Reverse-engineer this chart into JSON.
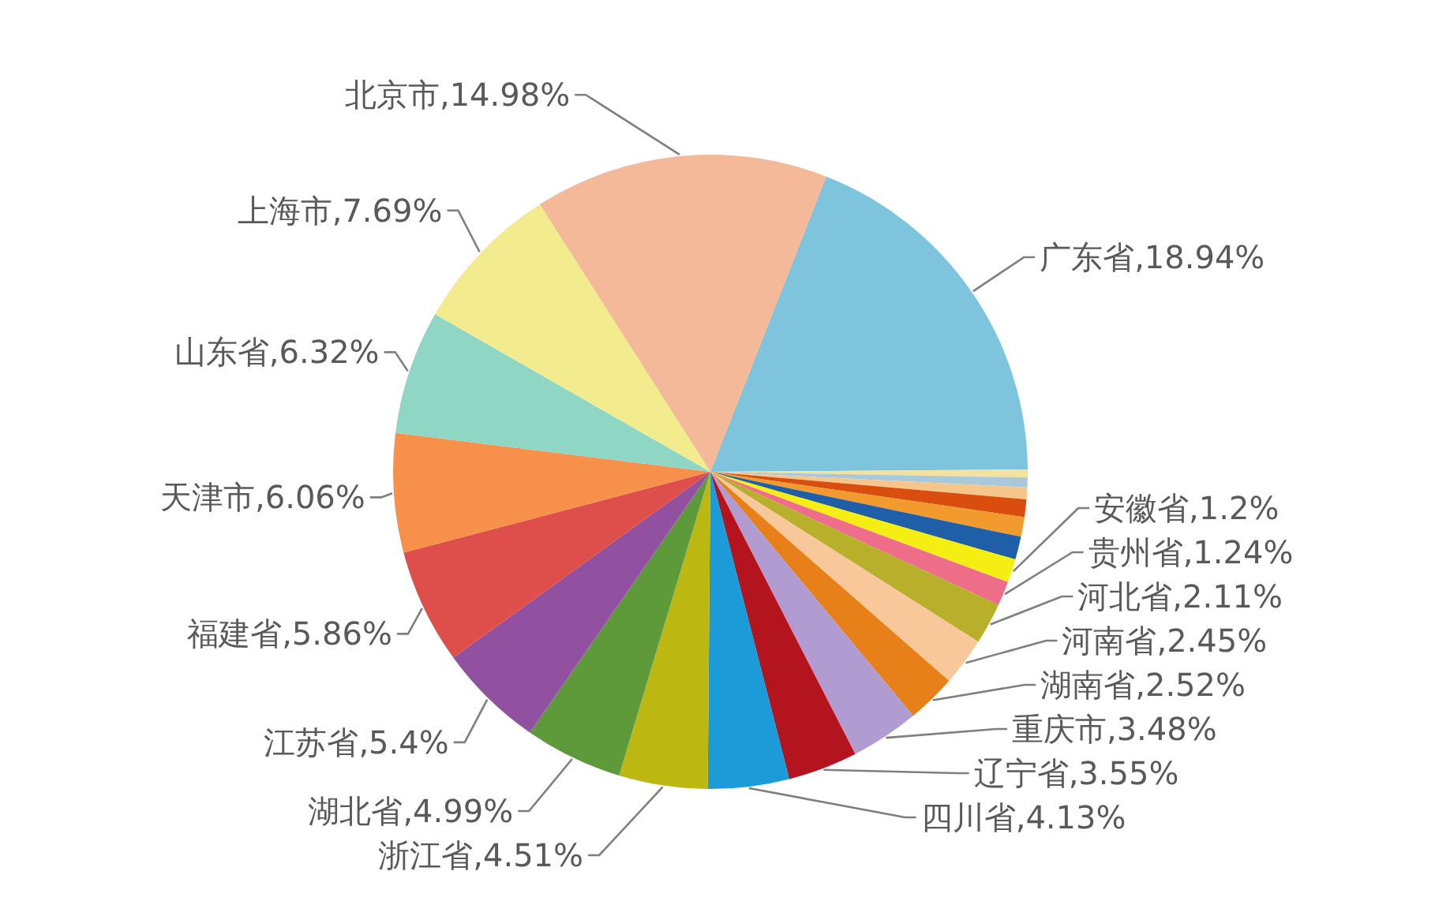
{
  "chart_data": {
    "type": "pie",
    "categories": [
      "广东省",
      null,
      null,
      null,
      null,
      null,
      null,
      "安徽省",
      "贵州省",
      "河北省",
      "河南省",
      "湖南省",
      "重庆市",
      "辽宁省",
      "四川省",
      "浙江省",
      "湖北省",
      "江苏省",
      "福建省",
      "天津市",
      "山东省",
      "上海市",
      "北京市"
    ],
    "values": [
      18.94,
      0.4,
      0.5,
      0.6,
      0.9,
      1.0,
      1.17,
      1.2,
      1.24,
      2.11,
      2.45,
      2.52,
      3.48,
      3.55,
      4.13,
      4.51,
      4.99,
      5.4,
      5.86,
      6.06,
      6.32,
      7.69,
      14.98
    ],
    "colors": [
      "#7ec4dc",
      "#f3e29e",
      "#a9c9db",
      "#f6c58a",
      "#d94e0e",
      "#f39a2e",
      "#1f5fa8",
      "#f5ee12",
      "#ee6e8a",
      "#b8b02a",
      "#f8c89a",
      "#e8801a",
      "#b09cd0",
      "#b3141e",
      "#1c9bd8",
      "#bdb712",
      "#5e9a3a",
      "#9150a0",
      "#de4f4c",
      "#f7904a",
      "#8fd6c4",
      "#f2ec8e",
      "#f4b998"
    ],
    "value_labels": [
      "18.94%",
      null,
      null,
      null,
      null,
      null,
      null,
      "1.2%",
      "1.24%",
      "2.11%",
      "2.45%",
      "2.52%",
      "3.48%",
      "3.55%",
      "4.13%",
      "4.51%",
      "4.99%",
      "5.4%",
      "5.86%",
      "6.06%",
      "6.32%",
      "7.69%",
      "14.98%"
    ]
  }
}
